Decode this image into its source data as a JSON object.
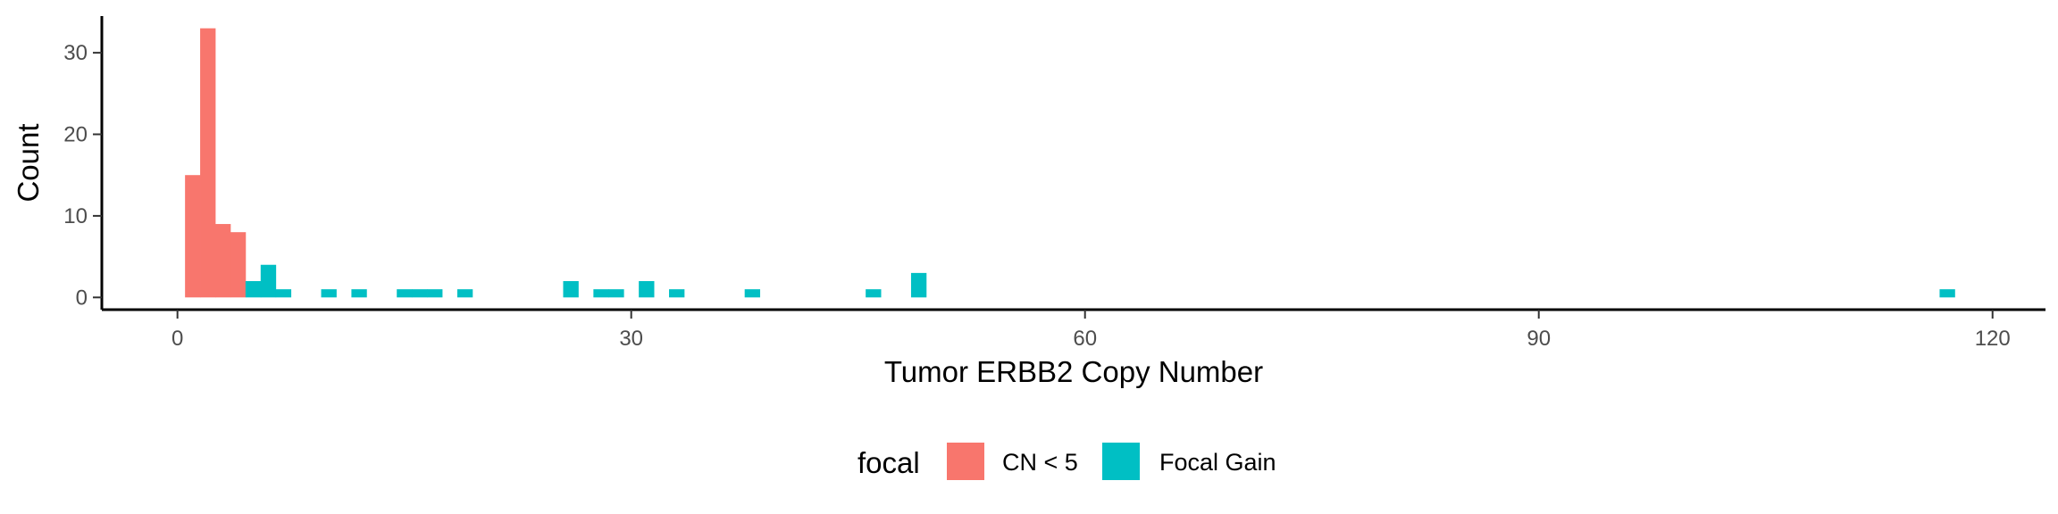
{
  "chart_data": {
    "type": "bar",
    "title": "",
    "xlabel": "Tumor ERBB2 Copy Number",
    "ylabel": "Count",
    "xlim": [
      -5,
      123.5
    ],
    "ylim": [
      -1.5,
      34.5
    ],
    "xticks": [
      0,
      30,
      60,
      90,
      120
    ],
    "yticks": [
      0,
      10,
      20,
      30
    ],
    "bin_width": 1,
    "grid": false,
    "legend_position": "bottom",
    "legend_title": "focal",
    "series": [
      {
        "name": "CN < 5",
        "color": "#F8766D",
        "bars": [
          {
            "x0": 0.5,
            "x1": 1.5,
            "count": 15
          },
          {
            "x0": 1.5,
            "x1": 2.5,
            "count": 33
          },
          {
            "x0": 2.5,
            "x1": 3.5,
            "count": 9
          },
          {
            "x0": 3.5,
            "x1": 4.5,
            "count": 8
          }
        ]
      },
      {
        "name": "Focal Gain",
        "color": "#00BFC4",
        "bars": [
          {
            "x0": 4.5,
            "x1": 5.5,
            "count": 2
          },
          {
            "x0": 5.5,
            "x1": 6.5,
            "count": 4
          },
          {
            "x0": 6.5,
            "x1": 7.5,
            "count": 1
          },
          {
            "x0": 9.5,
            "x1": 10.5,
            "count": 1
          },
          {
            "x0": 11.5,
            "x1": 12.5,
            "count": 1
          },
          {
            "x0": 14.5,
            "x1": 15.5,
            "count": 1
          },
          {
            "x0": 15.5,
            "x1": 16.5,
            "count": 1
          },
          {
            "x0": 16.5,
            "x1": 17.5,
            "count": 1
          },
          {
            "x0": 18.5,
            "x1": 19.5,
            "count": 1
          },
          {
            "x0": 25.5,
            "x1": 26.5,
            "count": 2
          },
          {
            "x0": 27.5,
            "x1": 28.5,
            "count": 1
          },
          {
            "x0": 28.5,
            "x1": 29.5,
            "count": 1
          },
          {
            "x0": 30.5,
            "x1": 31.5,
            "count": 2
          },
          {
            "x0": 32.5,
            "x1": 33.5,
            "count": 1
          },
          {
            "x0": 37.5,
            "x1": 38.5,
            "count": 1
          },
          {
            "x0": 45.5,
            "x1": 46.5,
            "count": 1
          },
          {
            "x0": 48.5,
            "x1": 49.5,
            "count": 3
          },
          {
            "x0": 116.5,
            "x1": 117.5,
            "count": 1
          }
        ]
      }
    ]
  }
}
